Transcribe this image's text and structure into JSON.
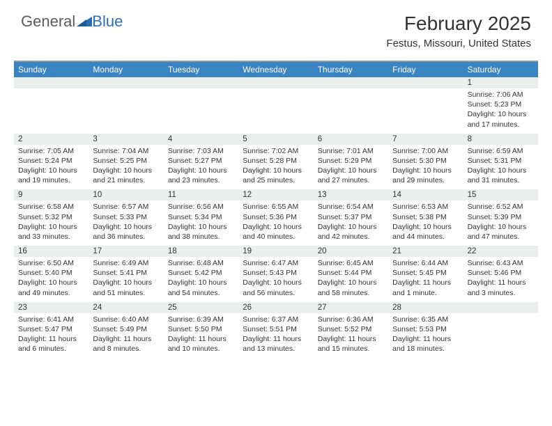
{
  "logo": {
    "part1": "General",
    "part2": "Blue"
  },
  "title": "February 2025",
  "location": "Festus, Missouri, United States",
  "colors": {
    "header_bg": "#3b84c4",
    "header_text": "#ffffff",
    "datebar_bg": "#eceded",
    "text": "#333333",
    "border": "#999999",
    "logo_gray": "#5a5a5a",
    "logo_blue": "#2b6fb0"
  },
  "typography": {
    "title_fontsize": 28,
    "location_fontsize": 15,
    "dayhead_fontsize": 12,
    "date_fontsize": 11.5,
    "cell_fontsize": 10.5
  },
  "dayNames": [
    "Sunday",
    "Monday",
    "Tuesday",
    "Wednesday",
    "Thursday",
    "Friday",
    "Saturday"
  ],
  "weeks": [
    {
      "dates": [
        "",
        "",
        "",
        "",
        "",
        "",
        "1"
      ],
      "cells": [
        null,
        null,
        null,
        null,
        null,
        null,
        {
          "sunrise": "Sunrise: 7:06 AM",
          "sunset": "Sunset: 5:23 PM",
          "day1": "Daylight: 10 hours",
          "day2": "and 17 minutes."
        }
      ]
    },
    {
      "dates": [
        "2",
        "3",
        "4",
        "5",
        "6",
        "7",
        "8"
      ],
      "cells": [
        {
          "sunrise": "Sunrise: 7:05 AM",
          "sunset": "Sunset: 5:24 PM",
          "day1": "Daylight: 10 hours",
          "day2": "and 19 minutes."
        },
        {
          "sunrise": "Sunrise: 7:04 AM",
          "sunset": "Sunset: 5:25 PM",
          "day1": "Daylight: 10 hours",
          "day2": "and 21 minutes."
        },
        {
          "sunrise": "Sunrise: 7:03 AM",
          "sunset": "Sunset: 5:27 PM",
          "day1": "Daylight: 10 hours",
          "day2": "and 23 minutes."
        },
        {
          "sunrise": "Sunrise: 7:02 AM",
          "sunset": "Sunset: 5:28 PM",
          "day1": "Daylight: 10 hours",
          "day2": "and 25 minutes."
        },
        {
          "sunrise": "Sunrise: 7:01 AM",
          "sunset": "Sunset: 5:29 PM",
          "day1": "Daylight: 10 hours",
          "day2": "and 27 minutes."
        },
        {
          "sunrise": "Sunrise: 7:00 AM",
          "sunset": "Sunset: 5:30 PM",
          "day1": "Daylight: 10 hours",
          "day2": "and 29 minutes."
        },
        {
          "sunrise": "Sunrise: 6:59 AM",
          "sunset": "Sunset: 5:31 PM",
          "day1": "Daylight: 10 hours",
          "day2": "and 31 minutes."
        }
      ]
    },
    {
      "dates": [
        "9",
        "10",
        "11",
        "12",
        "13",
        "14",
        "15"
      ],
      "cells": [
        {
          "sunrise": "Sunrise: 6:58 AM",
          "sunset": "Sunset: 5:32 PM",
          "day1": "Daylight: 10 hours",
          "day2": "and 33 minutes."
        },
        {
          "sunrise": "Sunrise: 6:57 AM",
          "sunset": "Sunset: 5:33 PM",
          "day1": "Daylight: 10 hours",
          "day2": "and 36 minutes."
        },
        {
          "sunrise": "Sunrise: 6:56 AM",
          "sunset": "Sunset: 5:34 PM",
          "day1": "Daylight: 10 hours",
          "day2": "and 38 minutes."
        },
        {
          "sunrise": "Sunrise: 6:55 AM",
          "sunset": "Sunset: 5:36 PM",
          "day1": "Daylight: 10 hours",
          "day2": "and 40 minutes."
        },
        {
          "sunrise": "Sunrise: 6:54 AM",
          "sunset": "Sunset: 5:37 PM",
          "day1": "Daylight: 10 hours",
          "day2": "and 42 minutes."
        },
        {
          "sunrise": "Sunrise: 6:53 AM",
          "sunset": "Sunset: 5:38 PM",
          "day1": "Daylight: 10 hours",
          "day2": "and 44 minutes."
        },
        {
          "sunrise": "Sunrise: 6:52 AM",
          "sunset": "Sunset: 5:39 PM",
          "day1": "Daylight: 10 hours",
          "day2": "and 47 minutes."
        }
      ]
    },
    {
      "dates": [
        "16",
        "17",
        "18",
        "19",
        "20",
        "21",
        "22"
      ],
      "cells": [
        {
          "sunrise": "Sunrise: 6:50 AM",
          "sunset": "Sunset: 5:40 PM",
          "day1": "Daylight: 10 hours",
          "day2": "and 49 minutes."
        },
        {
          "sunrise": "Sunrise: 6:49 AM",
          "sunset": "Sunset: 5:41 PM",
          "day1": "Daylight: 10 hours",
          "day2": "and 51 minutes."
        },
        {
          "sunrise": "Sunrise: 6:48 AM",
          "sunset": "Sunset: 5:42 PM",
          "day1": "Daylight: 10 hours",
          "day2": "and 54 minutes."
        },
        {
          "sunrise": "Sunrise: 6:47 AM",
          "sunset": "Sunset: 5:43 PM",
          "day1": "Daylight: 10 hours",
          "day2": "and 56 minutes."
        },
        {
          "sunrise": "Sunrise: 6:45 AM",
          "sunset": "Sunset: 5:44 PM",
          "day1": "Daylight: 10 hours",
          "day2": "and 58 minutes."
        },
        {
          "sunrise": "Sunrise: 6:44 AM",
          "sunset": "Sunset: 5:45 PM",
          "day1": "Daylight: 11 hours",
          "day2": "and 1 minute."
        },
        {
          "sunrise": "Sunrise: 6:43 AM",
          "sunset": "Sunset: 5:46 PM",
          "day1": "Daylight: 11 hours",
          "day2": "and 3 minutes."
        }
      ]
    },
    {
      "dates": [
        "23",
        "24",
        "25",
        "26",
        "27",
        "28",
        ""
      ],
      "cells": [
        {
          "sunrise": "Sunrise: 6:41 AM",
          "sunset": "Sunset: 5:47 PM",
          "day1": "Daylight: 11 hours",
          "day2": "and 6 minutes."
        },
        {
          "sunrise": "Sunrise: 6:40 AM",
          "sunset": "Sunset: 5:49 PM",
          "day1": "Daylight: 11 hours",
          "day2": "and 8 minutes."
        },
        {
          "sunrise": "Sunrise: 6:39 AM",
          "sunset": "Sunset: 5:50 PM",
          "day1": "Daylight: 11 hours",
          "day2": "and 10 minutes."
        },
        {
          "sunrise": "Sunrise: 6:37 AM",
          "sunset": "Sunset: 5:51 PM",
          "day1": "Daylight: 11 hours",
          "day2": "and 13 minutes."
        },
        {
          "sunrise": "Sunrise: 6:36 AM",
          "sunset": "Sunset: 5:52 PM",
          "day1": "Daylight: 11 hours",
          "day2": "and 15 minutes."
        },
        {
          "sunrise": "Sunrise: 6:35 AM",
          "sunset": "Sunset: 5:53 PM",
          "day1": "Daylight: 11 hours",
          "day2": "and 18 minutes."
        },
        null
      ]
    }
  ]
}
